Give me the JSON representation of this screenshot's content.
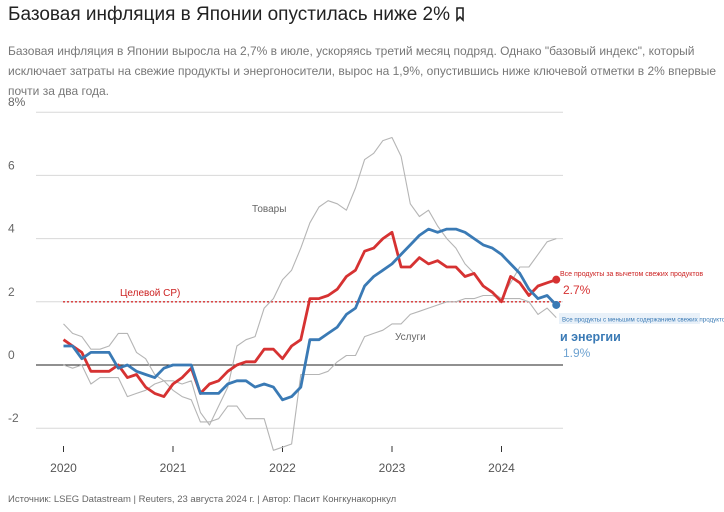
{
  "header": {
    "title": "Базовая инфляция в Японии опустилась ниже 2%",
    "title_icon": "bookmark-icon",
    "subtitle": "Базовая инфляция в Японии выросла на 2,7% в июле, ускоряясь третий месяц подряд. Однако \"базовый индекс\", который исключает затраты на свежие продукты и энергоносители, вырос на 1,9%, опустившись ниже ключевой отметки в 2% впервые почти за два года."
  },
  "footer": {
    "source": "Источник: LSEG Datastream | Reuters, 23 августа 2024 г. | Автор: Пасит Конгкунакорнкул"
  },
  "chart_data": {
    "type": "line",
    "title": "Базовая инфляция в Японии опустилась ниже 2%",
    "x_start": "2020-01",
    "x_end": "2024-07",
    "xlim": [
      2019.917,
      2024.583
    ],
    "ylim": [
      -2.8,
      8
    ],
    "y_ticks": [
      -2,
      0,
      2,
      4,
      6,
      8
    ],
    "y_tick_labels": [
      "-2",
      "0",
      "2",
      "4",
      "6",
      "8%"
    ],
    "x_ticks": [
      2020,
      2021,
      2022,
      2023,
      2024
    ],
    "x_tick_labels": [
      "2020",
      "2021",
      "2022",
      "2023",
      "2024"
    ],
    "target_line": {
      "value": 2,
      "label": "Целевой CP)"
    },
    "series": [
      {
        "name": "Товары",
        "color": "#b5b5b5",
        "values": [
          1.3,
          1.0,
          0.9,
          0.5,
          0.5,
          0.6,
          1.0,
          1.0,
          0.4,
          0.2,
          -0.3,
          -0.5,
          -0.5,
          -0.6,
          -0.5,
          -1.5,
          -1.9,
          -1.3,
          -0.7,
          0.6,
          0.8,
          0.9,
          1.8,
          2.1,
          2.7,
          3.0,
          3.7,
          4.5,
          5.0,
          5.2,
          5.1,
          4.9,
          5.6,
          6.5,
          6.7,
          7.1,
          7.2,
          6.6,
          5.1,
          4.7,
          4.9,
          4.4,
          4.0,
          3.7,
          3.2,
          2.9,
          2.5,
          2.3,
          2.1,
          2.6,
          3.1,
          3.1,
          3.5,
          3.9,
          4.0
        ]
      },
      {
        "name": "Услуги",
        "color": "#b5b5b5",
        "values": [
          0.0,
          -0.1,
          0.0,
          -0.6,
          -0.4,
          -0.4,
          -0.4,
          -1.0,
          -0.9,
          -0.8,
          -0.6,
          -0.5,
          -0.8,
          -1.0,
          -1.1,
          -1.8,
          -1.8,
          -1.7,
          -1.3,
          -1.3,
          -1.7,
          -1.7,
          -1.7,
          -2.7,
          -2.6,
          -2.5,
          -0.3,
          -0.3,
          -0.3,
          -0.2,
          0.1,
          0.3,
          0.3,
          0.9,
          1.0,
          1.1,
          1.3,
          1.3,
          1.6,
          1.7,
          1.8,
          1.9,
          2.0,
          2.0,
          2.1,
          2.1,
          2.2,
          2.2,
          2.1,
          2.1,
          2.1,
          2.0,
          1.6,
          1.8,
          1.5
        ]
      },
      {
        "name": "Все продукты за вычетом свежих продуктов",
        "color": "#d63232",
        "values": [
          0.8,
          0.6,
          0.4,
          -0.2,
          -0.2,
          -0.2,
          0.0,
          -0.4,
          -0.3,
          -0.7,
          -0.9,
          -1.0,
          -0.6,
          -0.4,
          -0.1,
          -0.9,
          -0.6,
          -0.5,
          -0.2,
          0.0,
          0.1,
          0.1,
          0.5,
          0.5,
          0.2,
          0.6,
          0.8,
          2.1,
          2.1,
          2.2,
          2.4,
          2.8,
          3.0,
          3.6,
          3.7,
          4.0,
          4.2,
          3.1,
          3.1,
          3.4,
          3.2,
          3.3,
          3.1,
          3.1,
          2.8,
          2.9,
          2.5,
          2.3,
          2.0,
          2.8,
          2.6,
          2.2,
          2.5,
          2.6,
          2.7
        ],
        "end_label": "Все продукты за вычетом свежих продуктов",
        "end_value_label": "2.7%"
      },
      {
        "name": "Все продукты с меньшим содержанием свежих продуктов и энергии",
        "color": "#3a7ab5",
        "values": [
          0.6,
          0.6,
          0.2,
          0.4,
          0.4,
          0.4,
          -0.1,
          0.0,
          -0.2,
          -0.3,
          -0.4,
          -0.1,
          0.0,
          0.0,
          0.0,
          -0.9,
          -0.9,
          -0.9,
          -0.6,
          -0.5,
          -0.5,
          -0.7,
          -0.6,
          -0.7,
          -1.1,
          -1.0,
          -0.7,
          0.8,
          0.8,
          1.0,
          1.2,
          1.6,
          1.8,
          2.5,
          2.8,
          3.0,
          3.2,
          3.5,
          3.8,
          4.1,
          4.3,
          4.2,
          4.3,
          4.3,
          4.2,
          4.0,
          3.8,
          3.7,
          3.5,
          3.2,
          2.9,
          2.4,
          2.1,
          2.2,
          1.9
        ],
        "end_label_small": "Все продукты с меньшим содержанием свежих продуктов",
        "end_label_large": "и энергии",
        "end_value_label": "1.9%"
      }
    ]
  }
}
